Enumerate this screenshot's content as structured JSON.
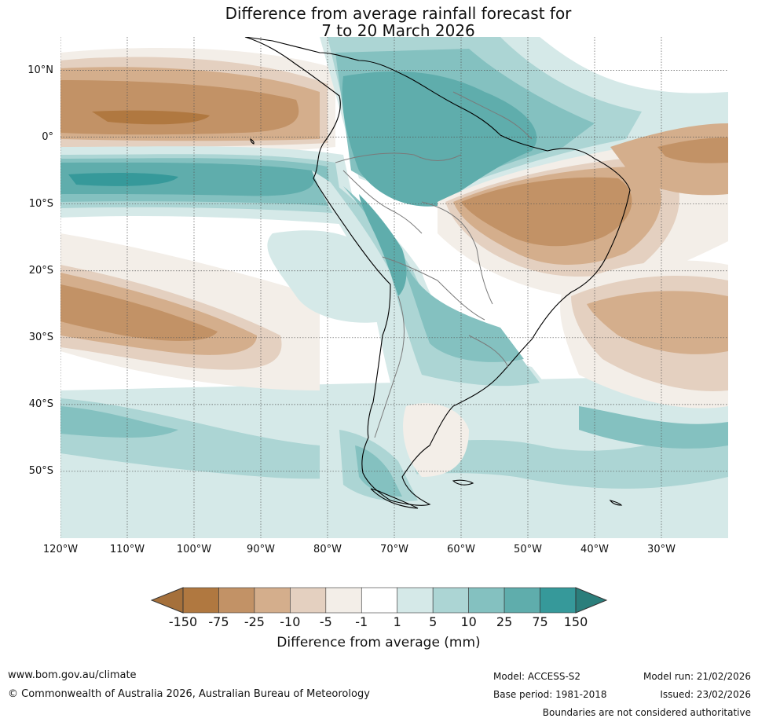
{
  "title": {
    "line1": "Difference from average rainfall forecast for",
    "line2": "7 to 20 March 2026"
  },
  "map": {
    "lon_range": [
      -120,
      -20
    ],
    "lat_range": [
      -60,
      15
    ],
    "lat_labels": [
      {
        "value": 10,
        "text": "10°N"
      },
      {
        "value": 0,
        "text": "0°"
      },
      {
        "value": -10,
        "text": "10°S"
      },
      {
        "value": -20,
        "text": "20°S"
      },
      {
        "value": -30,
        "text": "30°S"
      },
      {
        "value": -40,
        "text": "40°S"
      },
      {
        "value": -50,
        "text": "50°S"
      }
    ],
    "lon_labels": [
      {
        "value": -120,
        "text": "120°W"
      },
      {
        "value": -110,
        "text": "110°W"
      },
      {
        "value": -100,
        "text": "100°W"
      },
      {
        "value": -90,
        "text": "90°W"
      },
      {
        "value": -80,
        "text": "80°W"
      },
      {
        "value": -70,
        "text": "70°W"
      },
      {
        "value": -60,
        "text": "60°W"
      },
      {
        "value": -50,
        "text": "50°W"
      },
      {
        "value": -40,
        "text": "40°W"
      },
      {
        "value": -30,
        "text": "30°W"
      }
    ],
    "colors": {
      "dry_150": "#a5703b",
      "dry_75": "#b07840",
      "dry_25": "#c29266",
      "dry_10": "#d4ae8c",
      "dry_5": "#e4d0c0",
      "dry_1": "#f3eee8",
      "neutral": "#ffffff",
      "wet_1": "#d5e9e8",
      "wet_5": "#acd5d4",
      "wet_10": "#84c1c0",
      "wet_25": "#5fadac",
      "wet_75": "#36999a",
      "wet_150": "#2b7e7b",
      "coast": "#000000",
      "border": "#7a7a7a"
    }
  },
  "colorbar": {
    "ticks": [
      "-150",
      "-75",
      "-25",
      "-10",
      "-5",
      "-1",
      "1",
      "5",
      "10",
      "25",
      "75",
      "150"
    ],
    "colors": [
      "#b07840",
      "#c29266",
      "#d4ae8c",
      "#e4d0c0",
      "#f3eee8",
      "#ffffff",
      "#d5e9e8",
      "#acd5d4",
      "#84c1c0",
      "#5fadac",
      "#36999a"
    ],
    "under_color": "#a5703b",
    "over_color": "#2b7e7b",
    "label": "Difference from average (mm)"
  },
  "footer": {
    "website": "www.bom.gov.au/climate",
    "copyright": "© Commonwealth of Australia 2026, Australian Bureau of Meteorology",
    "model": "Model: ACCESS-S2",
    "base_period": "Base period: 1981-2018",
    "model_run": "Model run: 21/02/2026",
    "issued": "Issued: 23/02/2026",
    "disclaimer": "Boundaries are not considered authoritative"
  }
}
